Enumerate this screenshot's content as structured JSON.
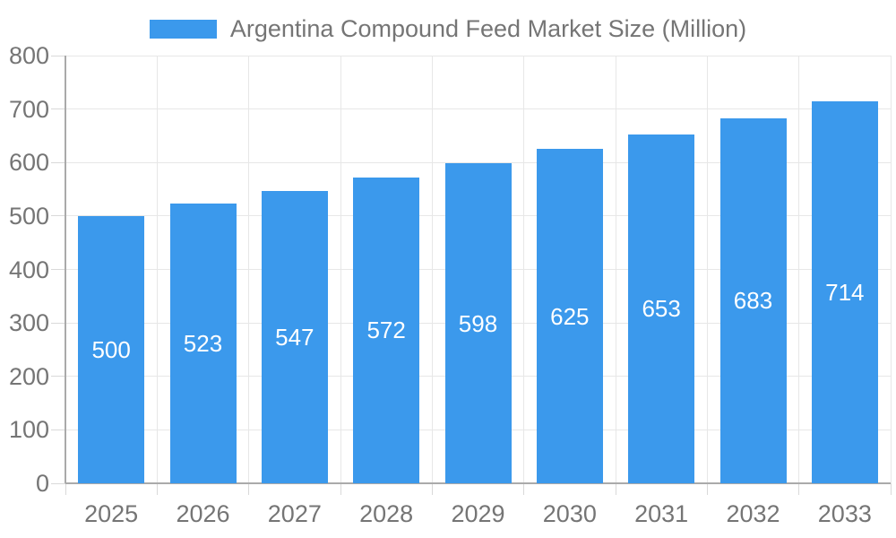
{
  "legend": {
    "label": "Argentina Compound Feed Market Size (Million)"
  },
  "chart_data": {
    "type": "bar",
    "title": "Argentina Compound Feed Market Size (Million)",
    "categories": [
      "2025",
      "2026",
      "2027",
      "2028",
      "2029",
      "2030",
      "2031",
      "2032",
      "2033"
    ],
    "values": [
      500,
      523,
      547,
      572,
      598,
      625,
      653,
      683,
      714
    ],
    "series": [
      {
        "name": "Argentina Compound Feed Market Size (Million)",
        "values": [
          500,
          523,
          547,
          572,
          598,
          625,
          653,
          683,
          714
        ]
      }
    ],
    "xlabel": "",
    "ylabel": "",
    "ylim": [
      0,
      800
    ],
    "y_tick_step": 100,
    "y_tick_labels": [
      "0",
      "100",
      "200",
      "300",
      "400",
      "500",
      "600",
      "700",
      "800"
    ],
    "grid": true,
    "legend_position": "top",
    "bar_labels_inside": true,
    "colors": {
      "bar": "#3B99EC",
      "bar_label": "#FFFFFF",
      "axis_text": "#757575",
      "axis_line": "#AAAAAA",
      "gridline": "#E7E7E7",
      "tick": "#D9D9D9"
    }
  }
}
